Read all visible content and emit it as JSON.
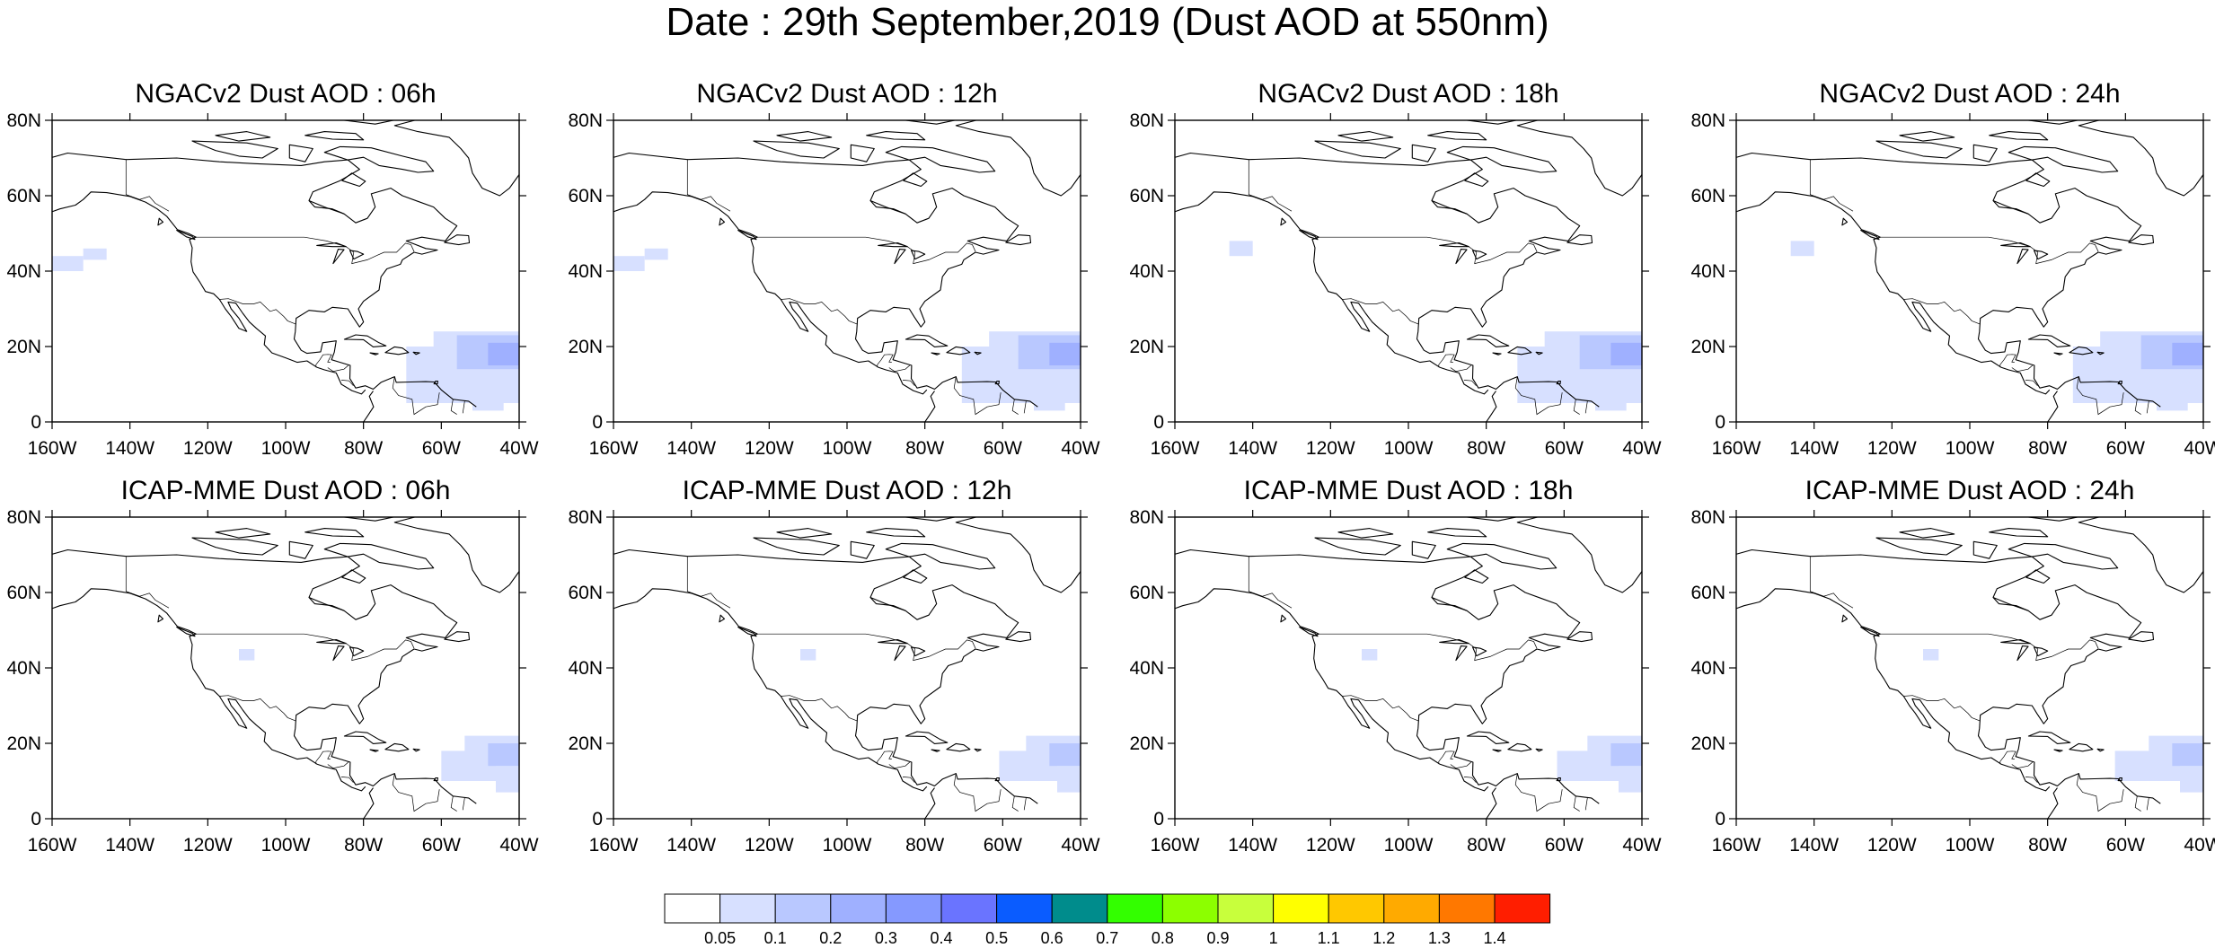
{
  "title": "Date : 29th September,2019 (Dust AOD at 550nm)",
  "axes": {
    "lat_labels": [
      "80N",
      "60N",
      "40N",
      "20N",
      "0"
    ],
    "lat_values": [
      80,
      60,
      40,
      20,
      0
    ],
    "lon_labels": [
      "160W",
      "140W",
      "120W",
      "100W",
      "80W",
      "60W",
      "40W"
    ],
    "lon_values": [
      -160,
      -140,
      -120,
      -100,
      -80,
      -60,
      -40
    ],
    "lon_range": [
      -160,
      -40
    ],
    "lat_range": [
      0,
      80
    ]
  },
  "panels": [
    {
      "title": "NGACv2 Dust AOD : 06h",
      "model": "NGACv2",
      "hour": "06h"
    },
    {
      "title": "NGACv2 Dust AOD : 12h",
      "model": "NGACv2",
      "hour": "12h"
    },
    {
      "title": "NGACv2 Dust AOD : 18h",
      "model": "NGACv2",
      "hour": "18h"
    },
    {
      "title": "NGACv2 Dust AOD : 24h",
      "model": "NGACv2",
      "hour": "24h"
    },
    {
      "title": "ICAP-MME Dust AOD : 06h",
      "model": "ICAP-MME",
      "hour": "06h"
    },
    {
      "title": "ICAP-MME Dust AOD : 12h",
      "model": "ICAP-MME",
      "hour": "12h"
    },
    {
      "title": "ICAP-MME Dust AOD : 18h",
      "model": "ICAP-MME",
      "hour": "18h"
    },
    {
      "title": "ICAP-MME Dust AOD : 24h",
      "model": "ICAP-MME",
      "hour": "24h"
    }
  ],
  "colorbar": {
    "labels": [
      "0.05",
      "0.1",
      "0.2",
      "0.3",
      "0.4",
      "0.5",
      "0.6",
      "0.7",
      "0.8",
      "0.9",
      "1",
      "1.1",
      "1.2",
      "1.3",
      "1.4"
    ],
    "colors": [
      "#ffffff",
      "#d7e0ff",
      "#b9c8ff",
      "#9fb0ff",
      "#8599ff",
      "#6a74ff",
      "#0a5cff",
      "#008c8c",
      "#33ff00",
      "#8cff00",
      "#c8ff3c",
      "#ffff00",
      "#ffc800",
      "#ffaa00",
      "#ff7800",
      "#ff1e00"
    ]
  },
  "map_style": {
    "coast_color": "#000000",
    "plume_light": "#d7e0ff",
    "plume_mid": "#b9c8ff",
    "plume_core": "#9fb0ff"
  }
}
